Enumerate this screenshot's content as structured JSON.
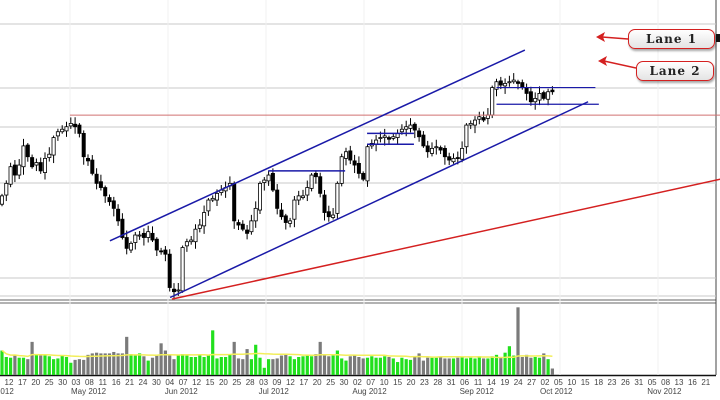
{
  "chart_data": {
    "type": "candlestick",
    "title": "",
    "ylim": [
      0,
      120
    ],
    "grid": true,
    "colors": {
      "up": "#ffffff",
      "down": "#000000",
      "channel": "#1a1aa8",
      "trend": "#d42020",
      "volume_up": "#22e01e",
      "volume_down": "#7a7a7a",
      "volume_avg": "#f2ee5a"
    },
    "close": [
      50,
      56,
      64,
      60,
      64.8,
      74,
      68.8,
      64,
      66,
      62,
      68,
      70,
      78,
      80.8,
      82,
      83.2,
      84.8,
      83.2,
      80,
      68.8,
      66.8,
      60.8,
      56,
      54,
      50,
      47.2,
      44,
      38,
      30,
      24.8,
      27.2,
      31.2,
      31.2,
      30,
      32.8,
      28.8,
      24,
      23.2,
      22,
      6,
      4,
      4.8,
      25.2,
      28,
      28.8,
      34,
      36,
      42,
      48,
      48.8,
      51.2,
      52.8,
      54,
      56,
      38,
      36,
      34,
      32,
      38,
      44,
      56,
      57.6,
      60,
      52.8,
      44,
      40,
      37.2,
      38,
      48,
      50,
      50,
      54,
      60,
      59.2,
      51.2,
      42,
      40,
      40.8,
      56,
      68.8,
      71.2,
      67.2,
      64.8,
      60.8,
      58,
      73.6,
      75.2,
      76.8,
      78,
      78.8,
      77.2,
      78.4,
      80,
      82,
      83.2,
      84,
      81.6,
      78.4,
      74,
      71.2,
      72.8,
      73.6,
      72,
      68.8,
      67.2,
      68,
      68,
      72.8,
      84,
      84.8,
      86.4,
      88,
      86.4,
      88.8,
      102,
      104.8,
      103.2,
      104,
      104.8,
      105.6,
      104,
      102.4,
      99.2,
      95.2,
      96.8,
      99.2,
      96.8,
      100,
      100
    ],
    "volume": [
      34,
      25,
      24,
      28,
      24,
      24,
      22,
      46,
      28,
      27,
      27,
      26,
      22,
      23,
      27,
      25,
      17,
      21,
      22,
      21,
      28,
      30,
      31,
      30,
      30,
      30,
      32,
      30,
      30,
      53,
      29,
      27,
      30,
      26,
      20,
      24,
      27,
      44,
      34,
      27,
      22,
      28,
      29,
      27,
      25,
      25,
      27,
      25,
      28,
      62,
      23,
      25,
      25,
      28,
      46,
      23,
      22,
      36,
      22,
      42,
      24,
      10,
      22,
      22,
      23,
      27,
      28,
      26,
      22,
      25,
      26,
      27,
      26,
      29,
      46,
      27,
      26,
      27,
      34,
      23,
      20,
      26,
      28,
      25,
      23,
      24,
      26,
      24,
      24,
      26,
      25,
      23,
      18,
      24,
      22,
      21,
      25,
      30,
      20,
      24,
      24,
      24,
      25,
      23,
      23,
      23,
      24,
      25,
      23,
      24,
      23,
      26,
      23,
      23,
      26,
      28,
      24,
      31,
      40,
      27,
      94,
      25,
      28,
      24,
      25,
      24,
      30,
      22,
      9
    ],
    "lines": {
      "upper_channel": [
        [
          25.1,
          28.4
        ],
        [
          121.6,
          120
        ]
      ],
      "lower_channel": [
        [
          39.1,
          1.2
        ],
        [
          136.3,
          95.2
        ]
      ],
      "trend_line": [
        [
          39.5,
          0.4
        ],
        [
          167,
          58
        ]
      ],
      "resistance": [
        [
          15.8,
          88.8
        ],
        [
          167,
          88.8
        ]
      ],
      "range_top_jul": [
        [
          61.9,
          62
        ],
        [
          79.8,
          62
        ]
      ],
      "range_aug_high": [
        [
          84.9,
          80
        ],
        [
          95.8,
          80
        ]
      ],
      "range_aug_low": [
        [
          84.9,
          74.8
        ],
        [
          95.8,
          74.8
        ]
      ],
      "lane_1": [
        [
          115,
          102
        ],
        [
          138,
          102
        ]
      ],
      "lane_2": [
        [
          115,
          94
        ],
        [
          138.8,
          94
        ]
      ]
    },
    "x_ticks": [
      "12",
      "17",
      "20",
      "25",
      "30",
      "03",
      "08",
      "11",
      "16",
      "21",
      "24",
      "30",
      "04",
      "07",
      "12",
      "15",
      "20",
      "25",
      "28",
      "03",
      "09",
      "12",
      "17",
      "20",
      "25",
      "30",
      "02",
      "07",
      "10",
      "15",
      "20",
      "23",
      "28",
      "31",
      "06",
      "11",
      "14",
      "19",
      "24",
      "27",
      "02",
      "05",
      "10",
      "15",
      "18",
      "23",
      "26",
      "31",
      "05",
      "08",
      "13",
      "16",
      "21"
    ],
    "months": [
      {
        "label": "2012",
        "tick": -0.6
      },
      {
        "label": "May 2012",
        "tick": 5
      },
      {
        "label": "Jun 2012",
        "tick": 12
      },
      {
        "label": "Jul 2012",
        "tick": 19
      },
      {
        "label": "Aug 2012",
        "tick": 26
      },
      {
        "label": "Sep 2012",
        "tick": 34
      },
      {
        "label": "Oct 2012",
        "tick": 40
      },
      {
        "label": "Nov 2012",
        "tick": 48
      }
    ],
    "annotations": {
      "lane1": "Lane 1",
      "lane2": "Lane 2"
    }
  }
}
